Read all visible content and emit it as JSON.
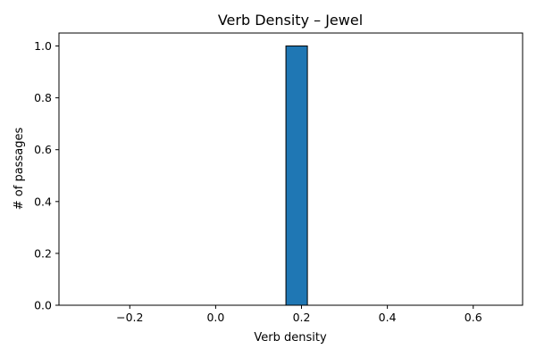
{
  "chart_data": {
    "type": "bar",
    "title": "Verb Density – Jewel",
    "xlabel": "Verb density",
    "ylabel": "# of passages",
    "xlim": [
      -0.365,
      0.715
    ],
    "ylim": [
      0,
      1.05
    ],
    "xticks": [
      -0.2,
      0.0,
      0.2,
      0.4,
      0.6
    ],
    "xtick_labels": [
      "−0.2",
      "0.0",
      "0.2",
      "0.4",
      "0.6"
    ],
    "yticks": [
      0.0,
      0.2,
      0.4,
      0.6,
      0.8,
      1.0
    ],
    "ytick_labels": [
      "0.0",
      "0.2",
      "0.4",
      "0.6",
      "0.8",
      "1.0"
    ],
    "bins": [
      {
        "x0": -0.3363,
        "x1": -0.2863,
        "count": 0
      },
      {
        "x0": -0.2863,
        "x1": -0.2363,
        "count": 0
      },
      {
        "x0": -0.2363,
        "x1": -0.1863,
        "count": 0
      },
      {
        "x0": -0.1863,
        "x1": -0.1363,
        "count": 0
      },
      {
        "x0": -0.1363,
        "x1": -0.0863,
        "count": 0
      },
      {
        "x0": -0.0863,
        "x1": -0.0363,
        "count": 0
      },
      {
        "x0": -0.0363,
        "x1": 0.0137,
        "count": 0
      },
      {
        "x0": 0.0137,
        "x1": 0.0637,
        "count": 0
      },
      {
        "x0": 0.0637,
        "x1": 0.1137,
        "count": 0
      },
      {
        "x0": 0.1137,
        "x1": 0.1637,
        "count": 0
      },
      {
        "x0": 0.1637,
        "x1": 0.2137,
        "count": 1
      },
      {
        "x0": 0.2137,
        "x1": 0.2637,
        "count": 0
      },
      {
        "x0": 0.2637,
        "x1": 0.3137,
        "count": 0
      },
      {
        "x0": 0.3137,
        "x1": 0.3637,
        "count": 0
      },
      {
        "x0": 0.3637,
        "x1": 0.4137,
        "count": 0
      },
      {
        "x0": 0.4137,
        "x1": 0.4637,
        "count": 0
      },
      {
        "x0": 0.4637,
        "x1": 0.5137,
        "count": 0
      },
      {
        "x0": 0.5137,
        "x1": 0.5637,
        "count": 0
      },
      {
        "x0": 0.5637,
        "x1": 0.6137,
        "count": 0
      },
      {
        "x0": 0.6137,
        "x1": 0.6637,
        "count": 0
      }
    ],
    "bar_color": "#1f77b4",
    "edge_color": "#000000",
    "grid": false,
    "legend": "none"
  }
}
